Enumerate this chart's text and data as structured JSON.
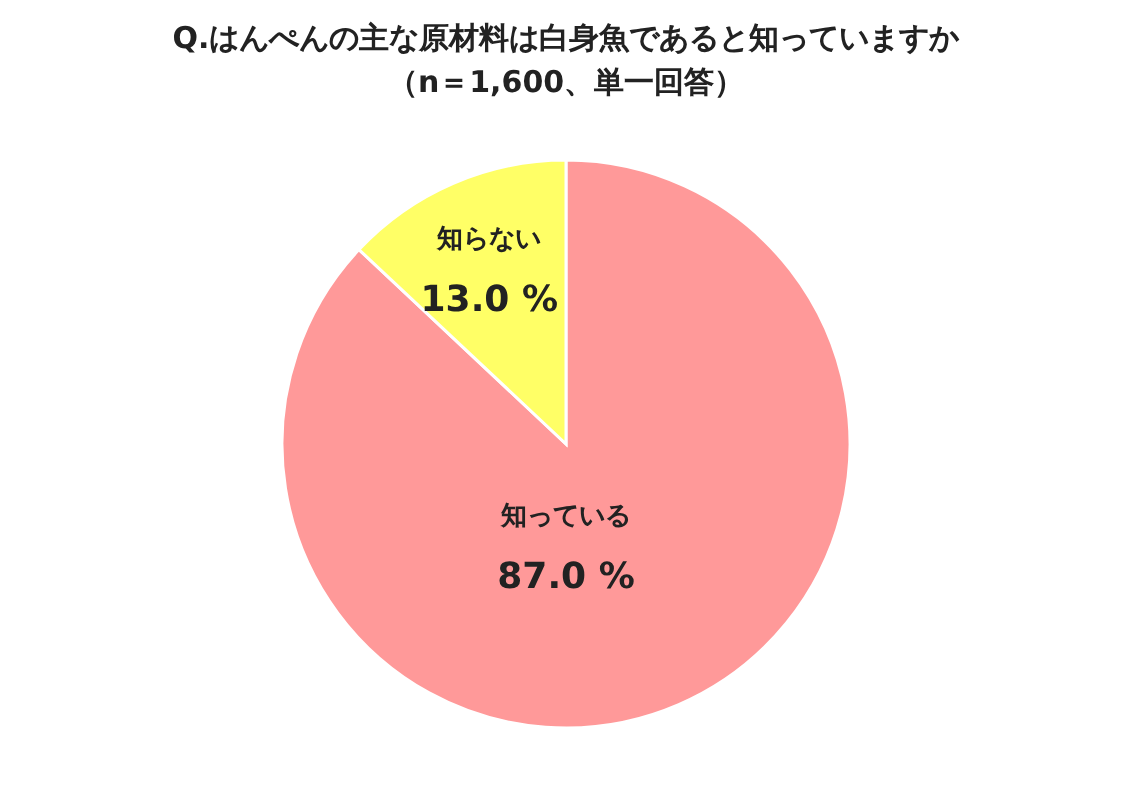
{
  "chart_data": {
    "type": "pie",
    "title": "Q.はんぺんの主な原材料は白身魚であると知っていますか",
    "subtitle": "（n＝1,600、単一回答）",
    "categories": [
      "知っている",
      "知らない"
    ],
    "values": [
      87.0,
      13.0
    ],
    "value_labels": [
      "87.0 %",
      "13.0 %"
    ],
    "colors": [
      "#ff9999",
      "#ffff66"
    ]
  }
}
